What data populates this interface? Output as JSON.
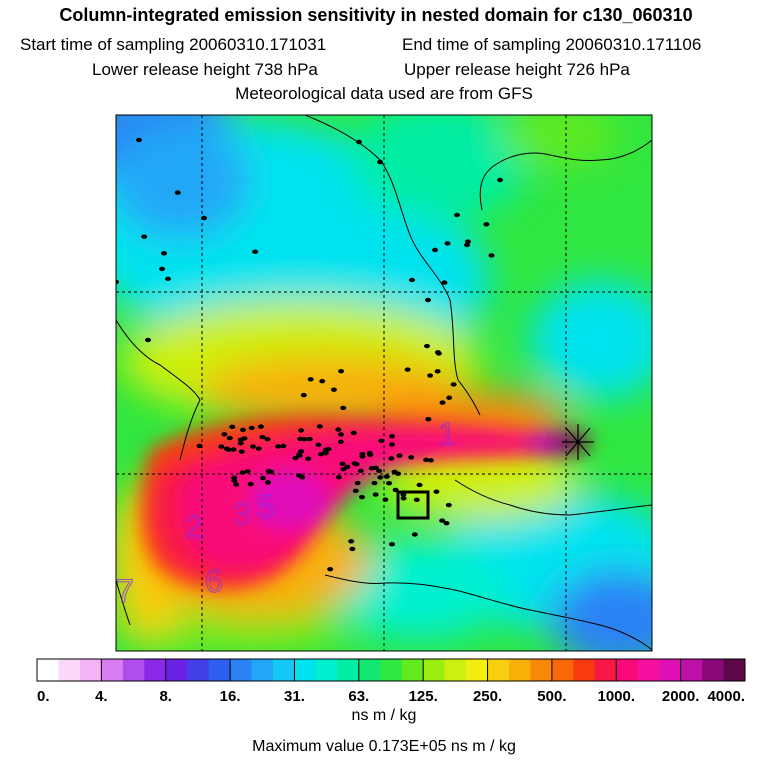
{
  "title": "Column-integrated emission sensitivity in nested domain for c130_060310",
  "start_label": "Start time of sampling 20060310.171031",
  "end_label": "End time of sampling 20060310.171106",
  "lower_label": "Lower release height  738 hPa",
  "upper_label": "Upper release height  726 hPa",
  "met_label": "Meteorological data used are from GFS",
  "units": "ns m / kg",
  "max_label": "Maximum value  0.173E+05 ns m / kg",
  "colorbar": {
    "tick_labels": [
      "0.",
      "4.",
      "8.",
      "16.",
      "31.",
      "63.",
      "125.",
      "250.",
      "500.",
      "1000.",
      "2000.",
      "4000."
    ],
    "colors": [
      "#ffffff",
      "#fcd9fc",
      "#f5b3f7",
      "#d77ef2",
      "#b04ded",
      "#8a28e8",
      "#6a23e5",
      "#4040e6",
      "#2f5ff0",
      "#2c82f5",
      "#22a7f7",
      "#15c8f5",
      "#00e3ee",
      "#00f0d0",
      "#00eda4",
      "#10e670",
      "#30e640",
      "#62ea20",
      "#9aee10",
      "#cdf010",
      "#f3ee10",
      "#f8d010",
      "#f8b008",
      "#f88808",
      "#f86808",
      "#f83a10",
      "#f81848",
      "#f80878",
      "#f510a0",
      "#e010b8",
      "#bc10a8",
      "#8c0878",
      "#5c0848"
    ]
  },
  "chart_data": {
    "type": "heatmap",
    "title": "Column-integrated emission sensitivity in nested domain for c130_060310",
    "variable": "emission sensitivity",
    "units": "ns m / kg",
    "scale": "logarithmic",
    "levels": [
      0,
      4,
      8,
      16,
      31,
      63,
      125,
      250,
      500,
      1000,
      2000,
      4000
    ],
    "maximum": 17300,
    "sampling_start": "20060310.171031",
    "sampling_end": "20060310.171106",
    "release_height_hpa": [
      738,
      726
    ],
    "met_data": "GFS",
    "plume_labels": [
      "1",
      "2",
      "3",
      "5",
      "6",
      "7"
    ]
  }
}
